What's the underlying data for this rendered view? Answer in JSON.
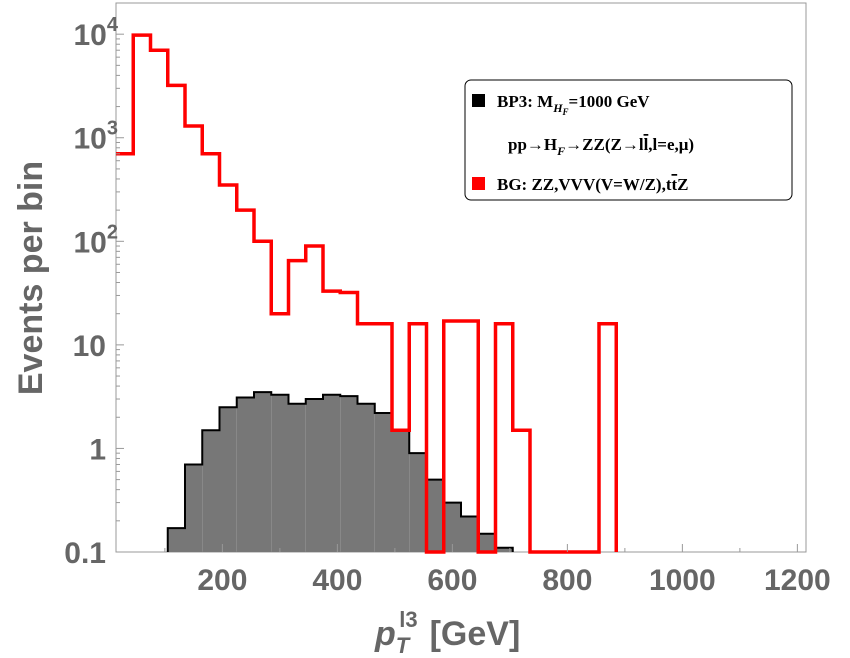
{
  "chart_data": {
    "type": "histogram",
    "title": "",
    "xlabel": {
      "main": "p",
      "sub": "T",
      "sup": "l3",
      "unit": "[GeV]"
    },
    "ylabel": "Events per bin",
    "xlim": [
      15,
      1215
    ],
    "ylim": [
      0.1,
      20000
    ],
    "yscale": "log",
    "x_ticks": [
      200,
      400,
      600,
      800,
      1000,
      1200
    ],
    "y_ticks": [
      {
        "value": 0.1,
        "label": "0.1"
      },
      {
        "value": 1,
        "label": "1"
      },
      {
        "value": 10,
        "label": "10"
      },
      {
        "value": 100,
        "label": "10",
        "sup": "2"
      },
      {
        "value": 1000,
        "label": "10",
        "sup": "3"
      },
      {
        "value": 10000,
        "label": "10",
        "sup": "4"
      }
    ],
    "bin_width": 30,
    "bin_start": 15,
    "series": [
      {
        "name": "BP3",
        "style": "filled",
        "color": "#777777",
        "edge_color": "#000000",
        "values": [
          null,
          null,
          null,
          0.17,
          0.7,
          1.5,
          2.5,
          3.1,
          3.5,
          3.3,
          2.7,
          3.0,
          3.3,
          3.2,
          2.7,
          2.2,
          1.5,
          0.9,
          0.5,
          0.3,
          0.22,
          0.15,
          0.11
        ]
      },
      {
        "name": "BG",
        "style": "step",
        "color": "#ff0000",
        "values": [
          700,
          9800,
          7000,
          3200,
          1300,
          700,
          350,
          200,
          100,
          20,
          65,
          90,
          33,
          32,
          16,
          16,
          1.5,
          16,
          0.1,
          17,
          17,
          0.1,
          16,
          1.5,
          0.1,
          0.1,
          0.1,
          0.1,
          16
        ]
      }
    ],
    "legend": {
      "position": "top-right",
      "entries": [
        {
          "color": "#000000",
          "line1": "BP3: M",
          "line1_sub": "H",
          "line1_subsub": "F",
          "line1_rest": "=1000 GeV",
          "line2": "pp→H",
          "line2_sub": "F",
          "line2_rest": "→ZZ(Z→l",
          "line2_bar": "l",
          "line2_end": ",l=e,μ)"
        },
        {
          "color": "#ff0000",
          "line1": "BG: ZZ,VVV(V=W/Z),t",
          "line1_bar": "t",
          "line1_end": "Z"
        }
      ]
    }
  }
}
